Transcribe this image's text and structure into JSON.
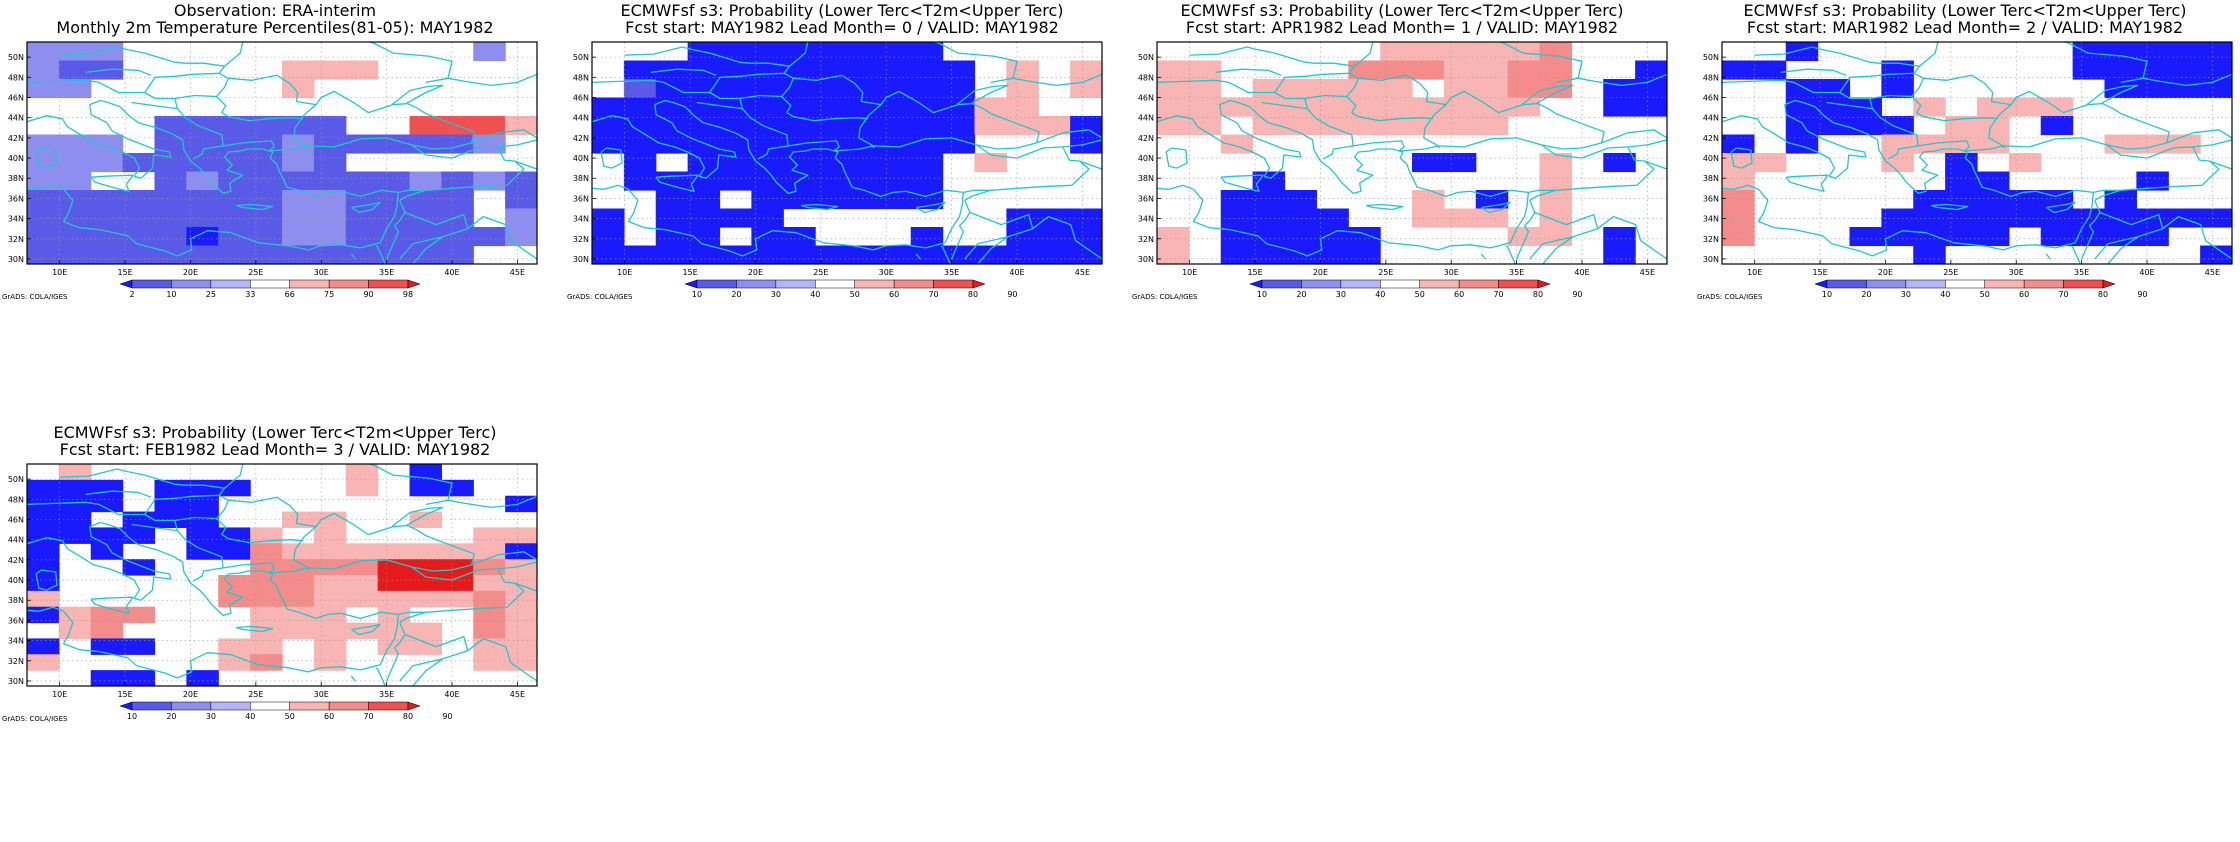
{
  "colors": {
    "blue_dark": "#1a1aff",
    "blue_mid": "#5a5ae8",
    "blue_light": "#8e8ef0",
    "blue_pale": "#b4b4f6",
    "white": "#ffffff",
    "red_pale": "#f9b4b4",
    "red_light": "#f58c8c",
    "red_mid": "#ef5050",
    "red_dark": "#e61a1a",
    "coast": "#20c8cc"
  },
  "lat_labels": [
    "50N",
    "48N",
    "46N",
    "44N",
    "42N",
    "40N",
    "38N",
    "36N",
    "34N",
    "32N",
    "30N"
  ],
  "lon_labels": [
    "10E",
    "15E",
    "20E",
    "25E",
    "30E",
    "35E",
    "40E",
    "45E"
  ],
  "credit": "GrADS: COLA/IGES",
  "panels": [
    {
      "title_line1": "Observation: ERA-interim",
      "title_line2": "Monthly 2m Temperature Percentiles(81-05): MAY1982",
      "colorbar": {
        "colors": [
          "#1a1aff",
          "#5a5ae8",
          "#8e8ef0",
          "#b4b4f6",
          "#ffffff",
          "#f9b4b4",
          "#f58c8c",
          "#ef5050",
          "#e61a1a"
        ],
        "labels": [
          "2",
          "10",
          "25",
          "33",
          "66",
          "75",
          "90",
          "98"
        ]
      },
      "grid_colors": [
        "W",
        "B",
        "p",
        "B",
        "b",
        "R",
        "r",
        "m",
        "d",
        "D"
      ],
      "grid": [
        "pppWWWWWWWWWWWpW",
        "pbbWWWWWrrrWWWWW",
        "ppWWWWWWrWWWWWWW",
        "WWWWWWWWWWWWWWWW",
        "WWWWbbbbbbWWRRRr",
        "pppWbbbbpbbbbbpW",
        "pppbbbbbpbWWWWWW",
        "ppWWbpbbbbbbpbpb",
        "bbbbbbbbppbbbbWb",
        "bbbbbbbbppbbbbWp",
        "bbbbbBbbppbbbbbp",
        "bbbbbbbbbbbbbbWW"
      ]
    },
    {
      "title_line1": "ECMWFsf s3: Probability (Lower Terc<T2m<Upper Terc)",
      "title_line2": "Fcst start: MAY1982  Lead Month= 0 / VALID: MAY1982",
      "colorbar": {
        "colors": [
          "#1a1aff",
          "#5a5ae8",
          "#8e8ef0",
          "#b4b4f6",
          "#ffffff",
          "#f9b4b4",
          "#f58c8c",
          "#ef5050",
          "#e61a1a"
        ],
        "labels": [
          "10",
          "20",
          "30",
          "40",
          "50",
          "60",
          "70",
          "80",
          "90"
        ]
      },
      "grid": [
        "WWWBBBBBBBBWWWWW",
        "WBBBBBBBBBBBWrWr",
        "WbBBBBBBBBBBWrWr",
        "BBBBBBBBBBBBrrWW",
        "BBBBBBBBBBBBrrrB",
        "BBBBBBBBBBBBWWWB",
        "WBWBBBBBBBBWrWWW",
        "WBBBBBBBBBBWWWWW",
        "WWBBWBBBBBBWWWWW",
        "BWBBBBWWWWWWWBBB",
        "BWBBWBBWWWBWWBBB",
        "BBBBBBBBBBBBBBBB"
      ]
    },
    {
      "title_line1": "ECMWFsf s3: Probability (Lower Terc<T2m<Upper Terc)",
      "title_line2": "Fcst start: APR1982  Lead Month= 1 / VALID: MAY1982",
      "colorbar": {
        "colors": [
          "#1a1aff",
          "#5a5ae8",
          "#8e8ef0",
          "#b4b4f6",
          "#ffffff",
          "#f9b4b4",
          "#f58c8c",
          "#ef5050",
          "#e61a1a"
        ],
        "labels": [
          "10",
          "20",
          "30",
          "40",
          "50",
          "60",
          "70",
          "80",
          "90"
        ]
      },
      "grid": [
        "WWWWWWWrrrrrmWWW",
        "rrWWWWmmmrrmmWWB",
        "rrWrrrrrWrrmmWBB",
        "rrrrrrrrrrrrWWBB",
        "rrWrrrrrrrrWWWWW",
        "WWrWWWWWWWWWWWWW",
        "WWWWWWWWBBWWrWBW",
        "WWWBWWWWWWWWrWWW",
        "WWBBBWWWrWBWrWWW",
        "WWBBBBWWrrrWrWWW",
        "rWBBBBBWWWWrrWBW",
        "rWBBBBBWWWWWWWBW"
      ]
    },
    {
      "title_line1": "ECMWFsf s3: Probability (Lower Terc<T2m<Upper Terc)",
      "title_line2": "Fcst start: MAR1982  Lead Month= 2 / VALID: MAY1982",
      "colorbar": {
        "colors": [
          "#1a1aff",
          "#5a5ae8",
          "#8e8ef0",
          "#b4b4f6",
          "#ffffff",
          "#f9b4b4",
          "#f58c8c",
          "#ef5050",
          "#e61a1a"
        ],
        "labels": [
          "10",
          "20",
          "30",
          "40",
          "50",
          "60",
          "70",
          "80",
          "90"
        ]
      },
      "grid": [
        "WWBWWWWWWWWBBBBB",
        "BBWWWBWWWWWBBBBB",
        "WWBBWBWWWWWWBBBB",
        "WWBBBWrWrrrWWWWW",
        "WWBBBBWrrWBWWWWW",
        "BWBWWrrrrWWWrrrW",
        "rrWWWrWBWrWWWWWW",
        "rWWWWWWBBWWWWBWW",
        "mWWWWWBBBBBWBWWW",
        "mWWWWBBBBBBBBBBB",
        "mWWWBBBBBWBBBBWW",
        "WWWWWWBWWWWWWWWB"
      ]
    },
    {
      "title_line1": "ECMWFsf s3: Probability (Lower Terc<T2m<Upper Terc)",
      "title_line2": "Fcst start: FEB1982  Lead Month= 3 / VALID: MAY1982",
      "colorbar": {
        "colors": [
          "#1a1aff",
          "#5a5ae8",
          "#8e8ef0",
          "#b4b4f6",
          "#ffffff",
          "#f9b4b4",
          "#f58c8c",
          "#ef5050",
          "#e61a1a"
        ],
        "labels": [
          "10",
          "20",
          "30",
          "40",
          "50",
          "60",
          "70",
          "80",
          "90"
        ]
      },
      "grid": [
        "WrWWWWWWWWrWBWWW",
        "BBBWBBBWWWrWBBWW",
        "BBBWBBWWWWWWWWWB",
        "BBWBBBWWrrWWrWWW",
        "BBBBWBBrWrWWWWrr",
        "BWBWWBBmrrrrrrrB",
        "BWWBWWWmmmmdddmr",
        "BWWWWWmmmrrdddrr",
        "rWWWWWmmmrrrrrmr",
        "BrmmWWWrrrWrWWmr",
        "WrmWWWWrrrrrrWmr",
        "BWBBWWrrWrWrrWrr",
        "rWWWWWrmWrWWWWrr",
        "WWBBWBWWWWWWWWWW"
      ]
    }
  ]
}
